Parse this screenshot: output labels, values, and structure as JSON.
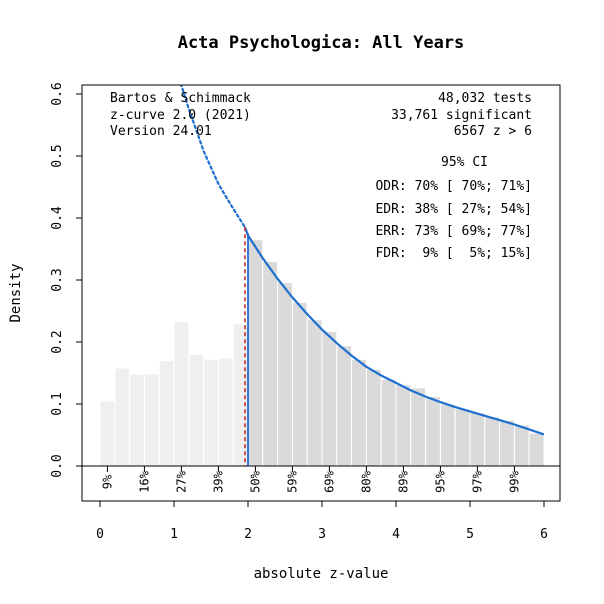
{
  "chart_data": {
    "type": "bar",
    "title": "Acta Psychologica: All Years",
    "xlabel": "absolute z-value",
    "ylabel": "Density",
    "xlim": [
      0,
      6
    ],
    "ylim": [
      0,
      0.6
    ],
    "x_ticks": [
      "0",
      "1",
      "2",
      "3",
      "4",
      "5",
      "6"
    ],
    "y_ticks": [
      "0.0",
      "0.1",
      "0.2",
      "0.3",
      "0.4",
      "0.5",
      "0.6"
    ],
    "bin_width": 0.2,
    "bins_start": [
      0.0,
      0.2,
      0.4,
      0.6,
      0.8,
      1.0,
      1.2,
      1.4,
      1.6,
      1.8,
      2.0,
      2.2,
      2.4,
      2.6,
      2.8,
      3.0,
      3.2,
      3.4,
      3.6,
      3.8,
      4.0,
      4.2,
      4.4,
      4.6,
      4.8,
      5.0,
      5.2,
      5.4,
      5.6,
      5.8
    ],
    "values": [
      0.105,
      0.158,
      0.148,
      0.149,
      0.17,
      0.233,
      0.18,
      0.172,
      0.174,
      0.229,
      0.365,
      0.33,
      0.296,
      0.264,
      0.236,
      0.217,
      0.194,
      0.172,
      0.156,
      0.14,
      0.131,
      0.126,
      0.112,
      0.1,
      0.092,
      0.086,
      0.079,
      0.074,
      0.066,
      0.053
    ],
    "curve": {
      "solid_x": [
        1.96,
        2.0,
        2.2,
        2.4,
        2.6,
        2.8,
        3.0,
        3.2,
        3.4,
        3.6,
        3.8,
        4.0,
        4.2,
        4.4,
        4.6,
        4.8,
        5.0,
        5.2,
        5.4,
        5.6,
        5.8,
        6.0
      ],
      "solid_y": [
        0.385,
        0.372,
        0.335,
        0.302,
        0.272,
        0.245,
        0.22,
        0.198,
        0.178,
        0.16,
        0.146,
        0.134,
        0.122,
        0.112,
        0.103,
        0.095,
        0.088,
        0.081,
        0.074,
        0.067,
        0.059,
        0.051
      ],
      "dotted_x": [
        1.07,
        1.2,
        1.4,
        1.6,
        1.8,
        1.96
      ],
      "dotted_y": [
        0.625,
        0.576,
        0.508,
        0.455,
        0.415,
        0.385
      ],
      "color": "#1f6fd1"
    },
    "significance_line": {
      "x": 1.96,
      "color": "#cc2222"
    },
    "zcurve_line": {
      "x": 2.0,
      "color": "#1f6fd1"
    },
    "power_labels": [
      {
        "x": 0.1,
        "label": "9%"
      },
      {
        "x": 0.6,
        "label": "16%"
      },
      {
        "x": 1.1,
        "label": "27%"
      },
      {
        "x": 1.6,
        "label": "39%"
      },
      {
        "x": 2.1,
        "label": "50%"
      },
      {
        "x": 2.6,
        "label": "59%"
      },
      {
        "x": 3.1,
        "label": "69%"
      },
      {
        "x": 3.6,
        "label": "80%"
      },
      {
        "x": 4.1,
        "label": "89%"
      },
      {
        "x": 4.6,
        "label": "95%"
      },
      {
        "x": 5.1,
        "label": "97%"
      },
      {
        "x": 5.6,
        "label": "99%"
      }
    ],
    "colors": {
      "bar_nonsig": "#efefef",
      "bar_sig": "#dadada",
      "bar_edge": "#ffffff"
    }
  },
  "annotations": {
    "left": [
      "Bartos & Schimmack",
      "z-curve 2.0 (2021)",
      "Version 24.01"
    ],
    "right_top": [
      "48,032 tests",
      "33,761 significant",
      "6567 z > 6"
    ],
    "ci_header": "95% CI",
    "ci_rows": [
      "ODR: 70% [ 70%; 71%]",
      "EDR: 38% [ 27%; 54%]",
      "ERR: 73% [ 69%; 77%]",
      "FDR:  9% [  5%; 15%]"
    ]
  }
}
